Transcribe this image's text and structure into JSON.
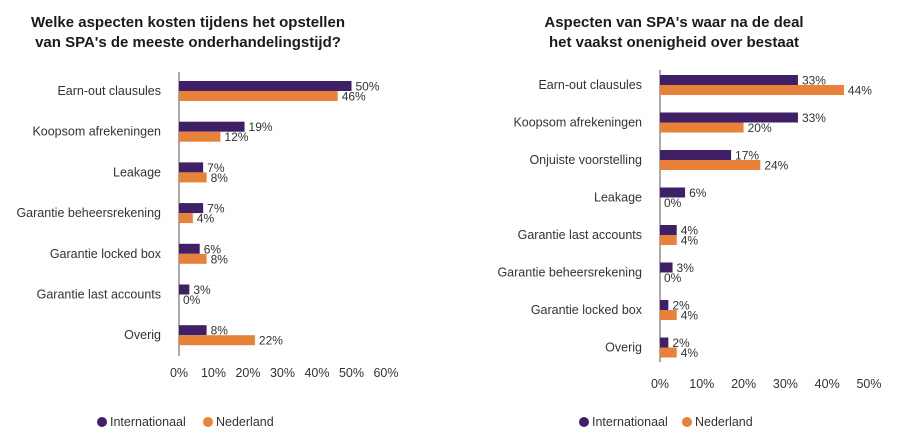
{
  "colors": {
    "internationaal": "#3f1f66",
    "nederland": "#e8823a",
    "axis": "#555555"
  },
  "chart_data": [
    {
      "type": "bar",
      "orientation": "horizontal",
      "title_lines": [
        "Welke aspecten kosten tijdens het opstellen",
        "van SPA's de meeste onderhandelingstijd?"
      ],
      "categories": [
        "Earn-out clausules",
        "Koopsom afrekeningen",
        "Leakage",
        "Garantie beheersrekening",
        "Garantie locked box",
        "Garantie last accounts",
        "Overig"
      ],
      "series": [
        {
          "name": "Internationaal",
          "values": [
            50,
            19,
            7,
            7,
            6,
            3,
            8
          ]
        },
        {
          "name": "Nederland",
          "values": [
            46,
            12,
            8,
            4,
            8,
            0,
            22
          ]
        }
      ],
      "xlim": [
        0,
        60
      ],
      "xticks": [
        "0%",
        "10%",
        "20%",
        "30%",
        "40%",
        "50%",
        "60%"
      ],
      "value_suffix": "%",
      "legend": "bottom"
    },
    {
      "type": "bar",
      "orientation": "horizontal",
      "title_lines": [
        "Aspecten van SPA's waar na de deal",
        "het vaakst onenigheid over bestaat"
      ],
      "categories": [
        "Earn-out clausules",
        "Koopsom afrekeningen",
        "Onjuiste voorstelling",
        "Leakage",
        "Garantie last accounts",
        "Garantie beheersrekening",
        "Garantie locked box",
        "Overig"
      ],
      "series": [
        {
          "name": "Internationaal",
          "values": [
            33,
            33,
            17,
            6,
            4,
            3,
            2,
            2
          ]
        },
        {
          "name": "Nederland",
          "values": [
            44,
            20,
            24,
            0,
            4,
            0,
            4,
            4
          ]
        }
      ],
      "xlim": [
        0,
        50
      ],
      "xticks": [
        "0%",
        "10%",
        "20%",
        "30%",
        "40%",
        "50%"
      ],
      "value_suffix": "%",
      "legend": "bottom"
    }
  ]
}
